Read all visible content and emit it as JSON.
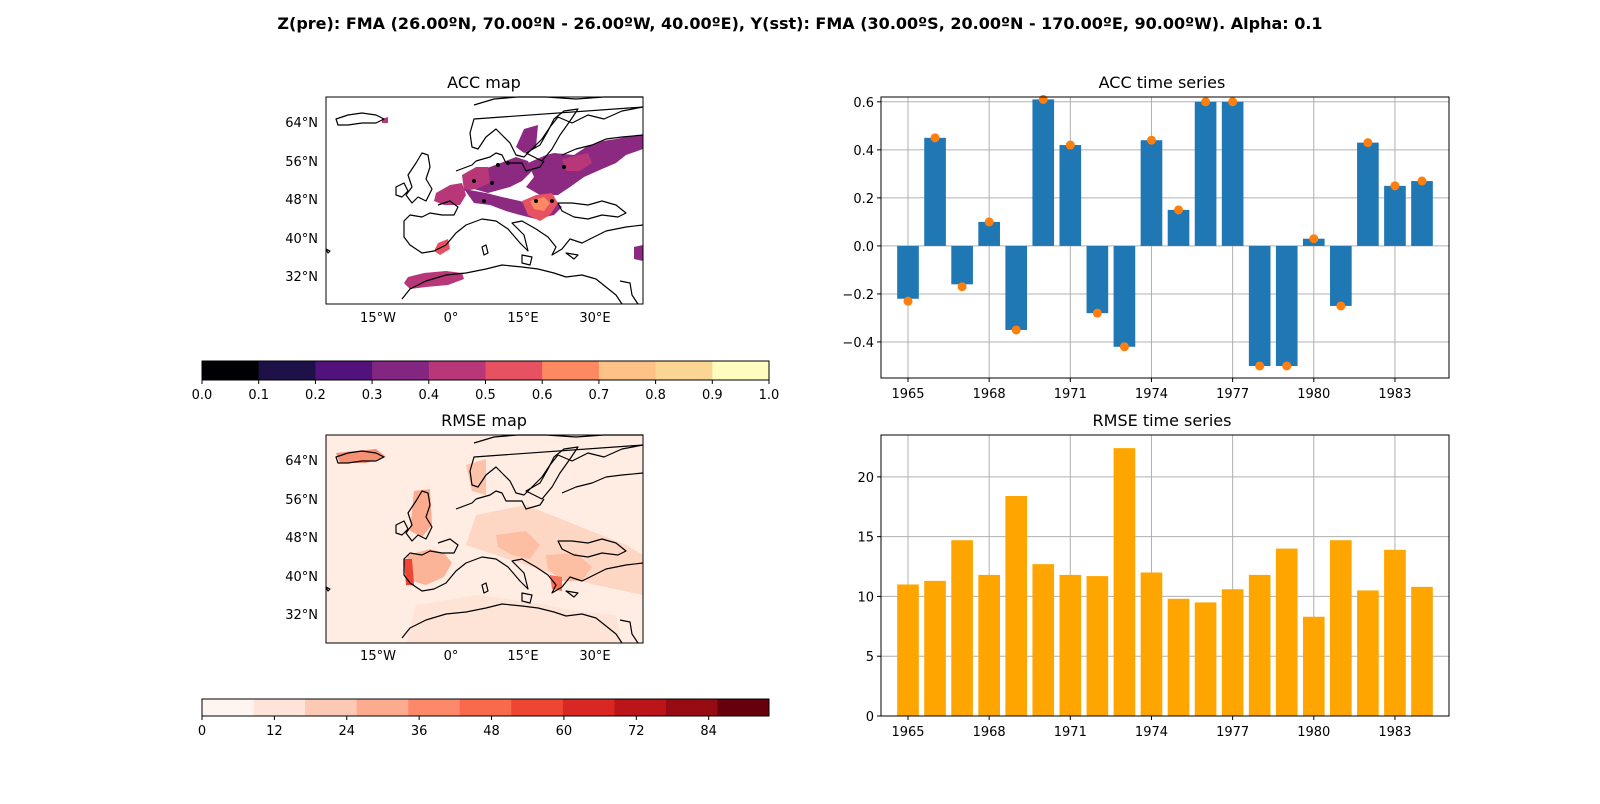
{
  "suptitle": "Z(pre): FMA (26.00ºN, 70.00ºN - 26.00ºW, 40.00ºE), Y(sst): FMA (30.00ºS, 20.00ºN - 170.00ºE, 90.00ºW). Alpha: 0.1",
  "chart_data": [
    {
      "type": "heatmap",
      "title": "ACC map",
      "xticks": [
        "15°W",
        "0°",
        "15°E",
        "30°E"
      ],
      "yticks": [
        "64°N",
        "56°N",
        "48°N",
        "40°N",
        "32°N"
      ],
      "colorbar": {
        "ticks": [
          "0.0",
          "0.1",
          "0.2",
          "0.3",
          "0.4",
          "0.5",
          "0.6",
          "0.7",
          "0.8",
          "0.9",
          "1.0"
        ],
        "colors": [
          "#000004",
          "#1d1147",
          "#51127c",
          "#822681",
          "#b73779",
          "#e75263",
          "#fc8961",
          "#fec287",
          "#fbd593",
          "#fcfdbf"
        ]
      }
    },
    {
      "type": "bar",
      "title": "ACC time series",
      "categories": [
        1965,
        1966,
        1967,
        1968,
        1969,
        1970,
        1971,
        1972,
        1973,
        1974,
        1975,
        1976,
        1977,
        1978,
        1979,
        1980,
        1981,
        1982,
        1983,
        1984
      ],
      "xticks": [
        "1965",
        "1968",
        "1971",
        "1974",
        "1977",
        "1980",
        "1983"
      ],
      "yticks": [
        "0.6",
        "0.4",
        "0.2",
        "0.0",
        "−0.2",
        "−0.4"
      ],
      "ylim": [
        -0.55,
        0.62
      ],
      "series": [
        {
          "kind": "bar",
          "color": "#1f77b4",
          "values": [
            -0.22,
            0.45,
            -0.16,
            0.1,
            -0.35,
            0.61,
            0.42,
            -0.28,
            -0.42,
            0.44,
            0.15,
            0.6,
            0.6,
            -0.5,
            -0.5,
            0.03,
            -0.25,
            0.43,
            0.25,
            0.27
          ]
        },
        {
          "kind": "scatter",
          "color": "#ff7f0e",
          "values": [
            -0.23,
            0.45,
            -0.17,
            0.1,
            -0.35,
            0.61,
            0.42,
            -0.28,
            -0.42,
            0.44,
            0.15,
            0.6,
            0.6,
            -0.5,
            -0.5,
            0.03,
            -0.25,
            0.43,
            0.25,
            0.27
          ]
        }
      ]
    },
    {
      "type": "heatmap",
      "title": "RMSE map",
      "xticks": [
        "15°W",
        "0°",
        "15°E",
        "30°E"
      ],
      "yticks": [
        "64°N",
        "56°N",
        "48°N",
        "40°N",
        "32°N"
      ],
      "colorbar": {
        "ticks": [
          "0",
          "12",
          "24",
          "36",
          "48",
          "60",
          "72",
          "84"
        ],
        "colors": [
          "#fff5f0",
          "#fee4d8",
          "#fcc9b4",
          "#fcab8f",
          "#fc8a6a",
          "#f9694c",
          "#ef4533",
          "#d92723",
          "#bb151a",
          "#970b13",
          "#67000d"
        ]
      }
    },
    {
      "type": "bar",
      "title": "RMSE time series",
      "categories": [
        1965,
        1966,
        1967,
        1968,
        1969,
        1970,
        1971,
        1972,
        1973,
        1974,
        1975,
        1976,
        1977,
        1978,
        1979,
        1980,
        1981,
        1982,
        1983,
        1984
      ],
      "xticks": [
        "1965",
        "1968",
        "1971",
        "1974",
        "1977",
        "1980",
        "1983"
      ],
      "yticks": [
        "20",
        "15",
        "10",
        "5",
        "0"
      ],
      "ylim": [
        0,
        23.5
      ],
      "series": [
        {
          "kind": "bar",
          "color": "#ffa500",
          "values": [
            11.0,
            11.3,
            14.7,
            11.8,
            18.4,
            12.7,
            11.8,
            11.7,
            22.4,
            12.0,
            9.8,
            9.5,
            10.6,
            11.8,
            14.0,
            8.3,
            14.7,
            10.5,
            13.9,
            10.8
          ]
        }
      ]
    }
  ]
}
